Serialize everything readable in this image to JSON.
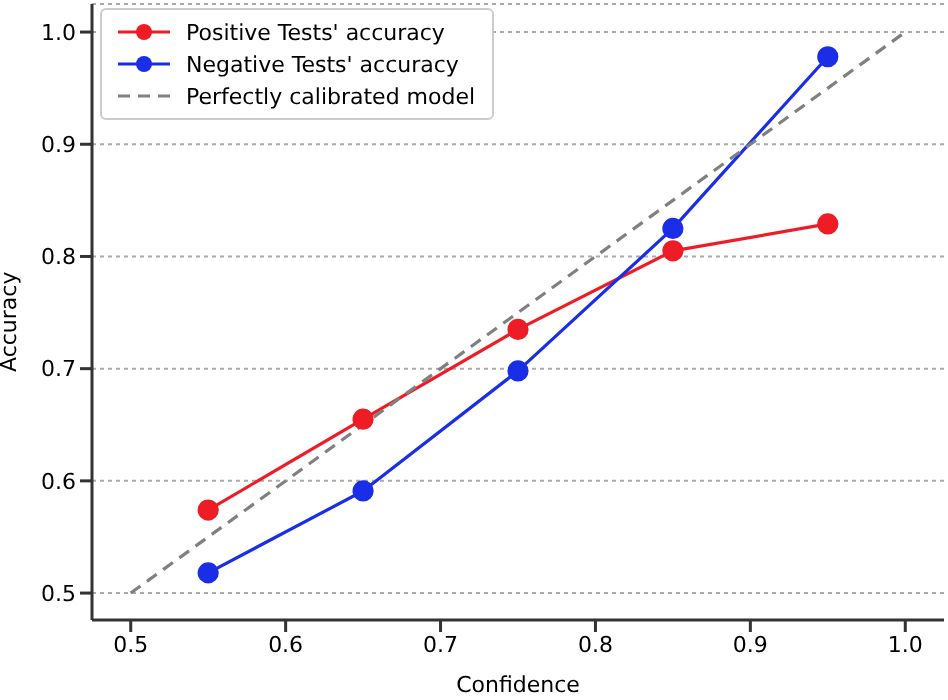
{
  "chart_data": {
    "type": "line",
    "xlabel": "Confidence",
    "ylabel": "Accuracy",
    "xlim": [
      0.475,
      1.025
    ],
    "ylim": [
      0.476,
      1.025
    ],
    "xticks": [
      0.5,
      0.6,
      0.7,
      0.8,
      0.9,
      {
        "value": 1,
        "label": "1.0"
      }
    ],
    "yticks": [
      0.5,
      0.6,
      0.7,
      0.8,
      0.9,
      {
        "value": 1,
        "label": "1.0"
      }
    ],
    "x": [
      0.55,
      0.65,
      0.75,
      0.85,
      0.95
    ],
    "grid": "y",
    "legend": "top left",
    "marker": "circle",
    "series": [
      {
        "name": "Positive Tests' accuracy",
        "color": "#ee1c25",
        "values": [
          0.574,
          0.655,
          0.735,
          0.805,
          0.829
        ]
      },
      {
        "name": "Negative Tests' accuracy",
        "color": "#1a2ee8",
        "values": [
          0.518,
          0.591,
          0.698,
          0.825,
          0.978
        ]
      },
      {
        "name": "Perfectly calibrated model",
        "color": "#808080",
        "x": [
          0.5,
          1.0
        ],
        "values": [
          0.5,
          1.0
        ],
        "marker": "none",
        "line_style": "dashed"
      }
    ]
  }
}
